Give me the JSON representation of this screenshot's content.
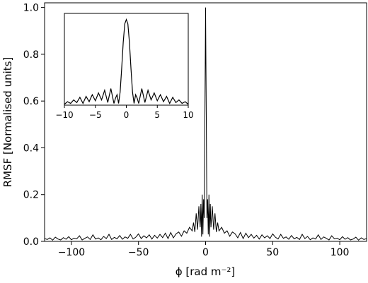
{
  "chart_data": [
    {
      "type": "line",
      "title": "",
      "xlabel": "ϕ [rad m⁻²]",
      "ylabel": "RMSF [Normalised units]",
      "xlim": [
        -120,
        120
      ],
      "ylim": [
        0,
        1.02
      ],
      "xticks": [
        -100,
        -50,
        0,
        50,
        100
      ],
      "xtick_labels": [
        "−100",
        "−50",
        "0",
        "50",
        "100"
      ],
      "yticks": [
        0.0,
        0.2,
        0.4,
        0.6,
        0.8,
        1.0
      ],
      "ytick_labels": [
        "0.0",
        "0.2",
        "0.4",
        "0.6",
        "0.8",
        "1.0"
      ],
      "grid": false,
      "series": [
        {
          "x": [
            -120,
            -118,
            -116,
            -114,
            -112,
            -110,
            -108,
            -106,
            -104,
            -102,
            -100,
            -98,
            -96,
            -94,
            -92,
            -90,
            -88,
            -86,
            -84,
            -82,
            -80,
            -78,
            -76,
            -74,
            -72,
            -70,
            -68,
            -66,
            -64,
            -62,
            -60,
            -58,
            -56,
            -54,
            -52,
            -50,
            -48,
            -46,
            -44,
            -42,
            -40,
            -38,
            -36,
            -34,
            -32,
            -30,
            -28,
            -26,
            -24,
            -22,
            -20,
            -18,
            -16,
            -14,
            -12,
            -10,
            -9,
            -8,
            -7,
            -6,
            -5,
            -4.5,
            -4,
            -3.5,
            -3,
            -2.5,
            -2,
            -1.5,
            -1,
            -0.5,
            0,
            0.5,
            1,
            1.5,
            2,
            2.5,
            3,
            3.5,
            4,
            4.5,
            5,
            6,
            7,
            8,
            9,
            10,
            12,
            14,
            16,
            18,
            20,
            22,
            24,
            26,
            28,
            30,
            32,
            34,
            36,
            38,
            40,
            42,
            44,
            46,
            48,
            50,
            52,
            54,
            56,
            58,
            60,
            62,
            64,
            66,
            68,
            70,
            72,
            74,
            76,
            78,
            80,
            82,
            84,
            86,
            88,
            90,
            92,
            94,
            96,
            98,
            100,
            102,
            104,
            106,
            108,
            110,
            112,
            114,
            116,
            118,
            120
          ],
          "y": [
            0.012,
            0.008,
            0.015,
            0.005,
            0.018,
            0.01,
            0.006,
            0.016,
            0.009,
            0.02,
            0.007,
            0.014,
            0.011,
            0.024,
            0.006,
            0.013,
            0.019,
            0.008,
            0.028,
            0.01,
            0.015,
            0.007,
            0.021,
            0.012,
            0.03,
            0.008,
            0.017,
            0.011,
            0.025,
            0.009,
            0.019,
            0.013,
            0.03,
            0.01,
            0.018,
            0.032,
            0.012,
            0.024,
            0.015,
            0.028,
            0.01,
            0.026,
            0.014,
            0.03,
            0.016,
            0.035,
            0.012,
            0.038,
            0.015,
            0.032,
            0.04,
            0.022,
            0.045,
            0.035,
            0.06,
            0.045,
            0.08,
            0.04,
            0.12,
            0.05,
            0.15,
            0.1,
            0.06,
            0.16,
            0.02,
            0.2,
            0.03,
            0.18,
            0.1,
            0.55,
            1.0,
            0.55,
            0.1,
            0.18,
            0.03,
            0.2,
            0.02,
            0.16,
            0.06,
            0.1,
            0.15,
            0.05,
            0.12,
            0.04,
            0.08,
            0.045,
            0.06,
            0.035,
            0.045,
            0.022,
            0.04,
            0.032,
            0.015,
            0.038,
            0.012,
            0.035,
            0.016,
            0.03,
            0.014,
            0.026,
            0.01,
            0.028,
            0.015,
            0.024,
            0.012,
            0.032,
            0.018,
            0.01,
            0.03,
            0.013,
            0.019,
            0.009,
            0.025,
            0.011,
            0.017,
            0.008,
            0.03,
            0.012,
            0.021,
            0.007,
            0.015,
            0.01,
            0.028,
            0.008,
            0.019,
            0.013,
            0.006,
            0.024,
            0.011,
            0.014,
            0.007,
            0.02,
            0.009,
            0.016,
            0.006,
            0.01,
            0.018,
            0.005,
            0.015,
            0.008,
            0.012
          ]
        }
      ]
    },
    {
      "type": "line",
      "title": "",
      "xlabel": "",
      "ylabel": "",
      "xlim": [
        -10,
        10
      ],
      "ylim": [
        0,
        1.05
      ],
      "xticks": [
        -10,
        -5,
        0,
        5,
        10
      ],
      "xtick_labels": [
        "−10",
        "−5",
        "0",
        "5",
        "10"
      ],
      "grid": false,
      "series": [
        {
          "x": [
            -10,
            -9.5,
            -9,
            -8.5,
            -8,
            -7.5,
            -7,
            -6.5,
            -6,
            -5.5,
            -5,
            -4.5,
            -4,
            -3.5,
            -3,
            -2.5,
            -2,
            -1.75,
            -1.5,
            -1.25,
            -1,
            -0.75,
            -0.5,
            -0.25,
            0,
            0.25,
            0.5,
            0.75,
            1,
            1.25,
            1.5,
            1.75,
            2,
            2.5,
            3,
            3.5,
            4,
            4.5,
            5,
            5.5,
            6,
            6.5,
            7,
            7.5,
            8,
            8.5,
            9,
            9.5,
            10
          ],
          "y": [
            0.01,
            0.04,
            0.02,
            0.06,
            0.03,
            0.09,
            0.02,
            0.1,
            0.04,
            0.12,
            0.05,
            0.14,
            0.06,
            0.17,
            0.03,
            0.19,
            0.02,
            0.08,
            0.12,
            0.02,
            0.15,
            0.42,
            0.72,
            0.93,
            0.98,
            0.93,
            0.72,
            0.42,
            0.15,
            0.02,
            0.12,
            0.08,
            0.02,
            0.19,
            0.03,
            0.17,
            0.06,
            0.14,
            0.05,
            0.12,
            0.04,
            0.1,
            0.02,
            0.09,
            0.03,
            0.06,
            0.02,
            0.04,
            0.01
          ]
        }
      ]
    }
  ]
}
